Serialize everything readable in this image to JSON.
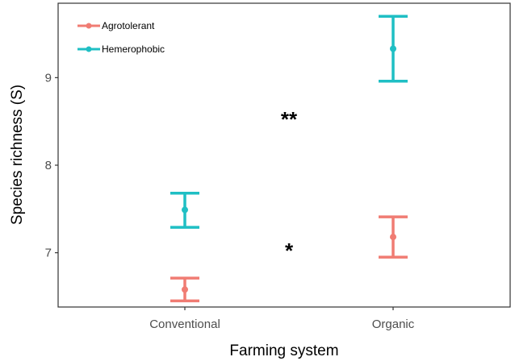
{
  "chart_data": {
    "type": "errorbar",
    "xlabel": "Farming system",
    "ylabel": "Species richness (S)",
    "categories": [
      "Conventional",
      "Organic"
    ],
    "ylim": [
      6.38,
      9.85
    ],
    "yticks": [
      7,
      8,
      9
    ],
    "grid": false,
    "legend_position": "top-left",
    "series": [
      {
        "name": "Agrotolerant",
        "color": "#F07C73",
        "points": [
          {
            "category": "Conventional",
            "mean": 6.58,
            "lower": 6.45,
            "upper": 6.71
          },
          {
            "category": "Organic",
            "mean": 7.18,
            "lower": 6.95,
            "upper": 7.41
          }
        ]
      },
      {
        "name": "Hemerophobic",
        "color": "#1FBFC4",
        "points": [
          {
            "category": "Conventional",
            "mean": 7.49,
            "lower": 7.29,
            "upper": 7.68
          },
          {
            "category": "Organic",
            "mean": 9.33,
            "lower": 8.96,
            "upper": 9.7
          }
        ]
      }
    ],
    "annotations": [
      {
        "text": "**",
        "x": 1.5,
        "y": 8.55
      },
      {
        "text": "*",
        "x": 1.5,
        "y": 7.05
      }
    ]
  }
}
